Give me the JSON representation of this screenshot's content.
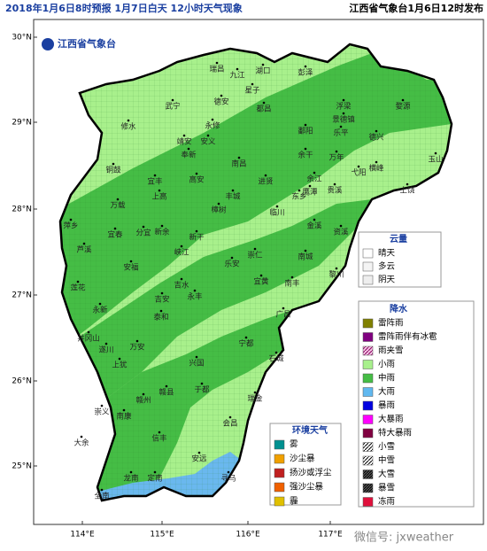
{
  "header": {
    "title": "2018年1月6日8时预报 1月7日白天 12小时天气现象",
    "issuer": "江西省气象台1月6日12时发布"
  },
  "logo": "江西省气象台",
  "axes": {
    "lon_ticks": [
      "114°E",
      "115°E",
      "116°E",
      "117°E"
    ],
    "lat_ticks": [
      "30°N",
      "29°N",
      "28°N",
      "27°N",
      "26°N",
      "25°N"
    ]
  },
  "legend_cloud": {
    "title": "云量",
    "items": [
      "晴天",
      "多云",
      "阴天"
    ]
  },
  "legend_precip": {
    "title": "降水",
    "items": [
      "雷阵雨",
      "雷阵雨伴有冰雹",
      "雨夹雪",
      "小雨",
      "中雨",
      "大雨",
      "暴雨",
      "大暴雨",
      "特大暴雨",
      "小雪",
      "中雪",
      "大雪",
      "暴雪",
      "冻雨"
    ]
  },
  "legend_env": {
    "title": "环境天气",
    "items": [
      "雾",
      "沙尘暴",
      "扬沙或浮尘",
      "强沙尘暴",
      "霾"
    ]
  },
  "cities": [
    "瑞昌",
    "九江",
    "湖口",
    "彭泽",
    "武宁",
    "德安",
    "星子",
    "都昌",
    "修水",
    "永修",
    "鄱阳",
    "浮梁",
    "景德镇",
    "婺源",
    "乐平",
    "安义",
    "靖安",
    "奉新",
    "南昌",
    "进贤",
    "余干",
    "万年",
    "德兴",
    "铜鼓",
    "宜丰",
    "上高",
    "高安",
    "丰城",
    "余江",
    "贵溪",
    "鹰潭",
    "弋阳",
    "横峰",
    "上饶",
    "玉山",
    "万载",
    "宜春",
    "分宜",
    "新余",
    "樟树",
    "新干",
    "临川",
    "东乡",
    "金溪",
    "资溪",
    "萍乡",
    "芦溪",
    "莲花",
    "安福",
    "峡江",
    "吉水",
    "吉安",
    "永丰",
    "乐安",
    "崇仁",
    "宜黄",
    "南城",
    "南丰",
    "黎川",
    "广昌",
    "永新",
    "井冈山",
    "泰和",
    "万安",
    "遂川",
    "兴国",
    "宁都",
    "石城",
    "瑞金",
    "于都",
    "赣县",
    "赣州",
    "上犹",
    "崇义",
    "南康",
    "大余",
    "信丰",
    "安远",
    "会昌",
    "寻乌",
    "定南",
    "全南",
    "龙南"
  ],
  "watermark": "微信号: jxweather"
}
